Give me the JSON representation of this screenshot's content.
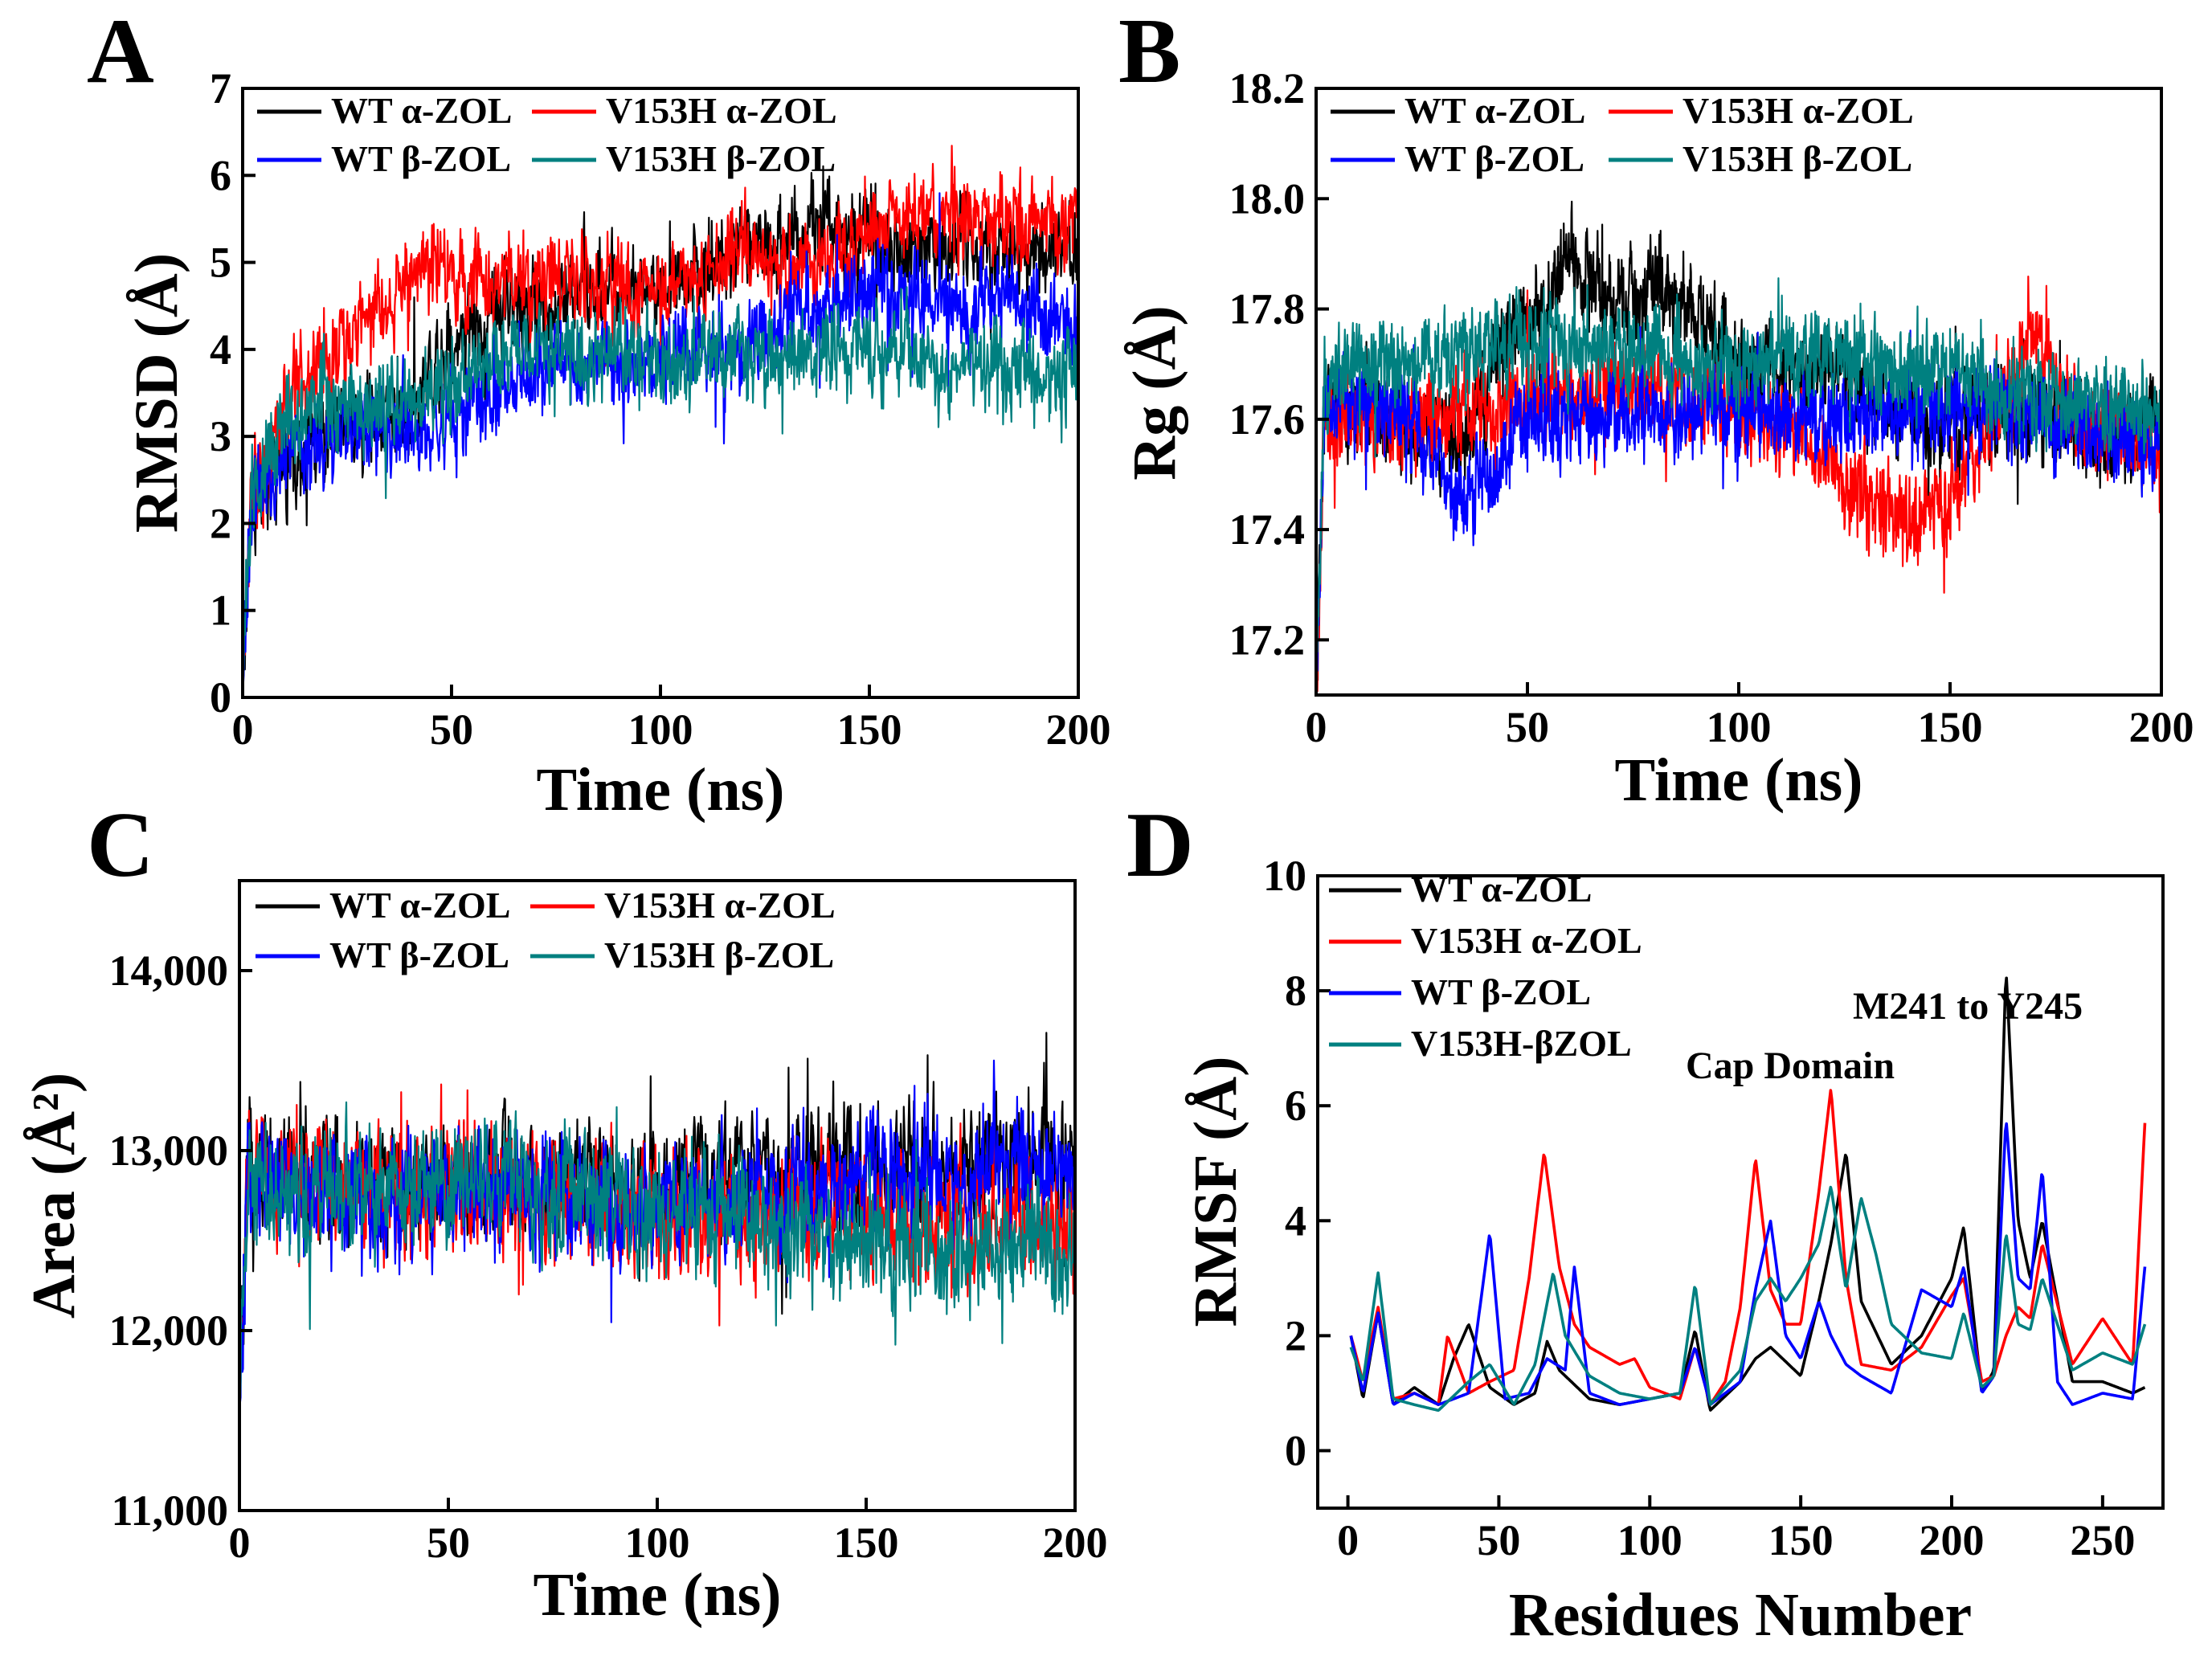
{
  "figure": {
    "panels": [
      "A",
      "B",
      "C",
      "D"
    ]
  },
  "colors": {
    "wt_alpha": "#000000",
    "v153h_alpha": "#ff0000",
    "wt_beta": "#0000ff",
    "v153h_beta": "#008080"
  },
  "chart_data": [
    {
      "panel": "A",
      "type": "line",
      "title": "",
      "xlabel": "Time (ns)",
      "ylabel": "RMSD (Å)",
      "xlim": [
        0,
        200
      ],
      "ylim": [
        0,
        7
      ],
      "xticks": [
        "0",
        "50",
        "100",
        "150",
        "200"
      ],
      "yticks": [
        "0",
        "1",
        "2",
        "3",
        "4",
        "5",
        "6",
        "7"
      ],
      "legend": {
        "placement": "top-left",
        "columns": 2
      },
      "noise": 0.09,
      "series": [
        {
          "name": "WT α-ZOL",
          "color": "#000000",
          "x": [
            0,
            2,
            10,
            20,
            30,
            40,
            50,
            55,
            60,
            70,
            80,
            90,
            100,
            110,
            120,
            130,
            140,
            150,
            160,
            170,
            180,
            190,
            200
          ],
          "values": [
            0,
            2.3,
            2.6,
            3.0,
            3.2,
            3.4,
            4.1,
            4.3,
            4.4,
            4.5,
            4.7,
            4.7,
            4.7,
            4.9,
            5.2,
            5.3,
            5.4,
            5.2,
            5.1,
            5.2,
            5.2,
            5.1,
            5.2
          ]
        },
        {
          "name": "V153H α-ZOL",
          "color": "#ff0000",
          "x": [
            0,
            2,
            10,
            20,
            30,
            40,
            45,
            50,
            60,
            70,
            80,
            90,
            100,
            110,
            120,
            130,
            140,
            150,
            160,
            170,
            180,
            190,
            200
          ],
          "values": [
            0,
            2.3,
            3.4,
            3.8,
            4.4,
            4.8,
            5.0,
            4.9,
            4.6,
            4.8,
            4.8,
            4.7,
            4.7,
            4.9,
            5.0,
            5.0,
            5.1,
            5.3,
            5.5,
            5.6,
            5.5,
            5.4,
            5.4
          ]
        },
        {
          "name": "WT β-ZOL",
          "color": "#0000ff",
          "x": [
            0,
            2,
            10,
            20,
            30,
            40,
            50,
            60,
            70,
            80,
            90,
            100,
            110,
            120,
            130,
            140,
            150,
            160,
            170,
            180,
            190,
            200
          ],
          "values": [
            0,
            2.2,
            2.8,
            2.9,
            3.1,
            3.0,
            3.2,
            3.5,
            3.7,
            3.8,
            3.8,
            3.9,
            4.0,
            4.0,
            4.3,
            4.5,
            4.7,
            4.6,
            4.5,
            4.6,
            4.4,
            4.3
          ]
        },
        {
          "name": "V153H β-ZOL",
          "color": "#008080",
          "x": [
            0,
            2,
            10,
            20,
            30,
            40,
            50,
            60,
            70,
            80,
            90,
            100,
            110,
            120,
            130,
            140,
            150,
            160,
            170,
            180,
            190,
            200
          ],
          "values": [
            0,
            2.4,
            3.2,
            3.4,
            3.3,
            3.4,
            3.6,
            3.9,
            4.0,
            4.0,
            3.9,
            3.9,
            3.8,
            3.9,
            3.9,
            4.0,
            4.0,
            3.9,
            3.8,
            3.8,
            3.7,
            3.7
          ]
        }
      ]
    },
    {
      "panel": "B",
      "type": "line",
      "title": "",
      "xlabel": "Time (ns)",
      "ylabel": "Rg (Å)",
      "xlim": [
        0,
        200
      ],
      "ylim": [
        17.1,
        18.2
      ],
      "xticks": [
        "0",
        "50",
        "100",
        "150",
        "200"
      ],
      "yticks": [
        "17.2",
        "17.4",
        "17.6",
        "17.8",
        "18.0",
        "18.2"
      ],
      "legend": {
        "placement": "top-left",
        "columns": 2
      },
      "noise": 0.09,
      "series": [
        {
          "name": "WT α-ZOL",
          "color": "#000000",
          "x": [
            0,
            2,
            20,
            35,
            45,
            55,
            60,
            70,
            80,
            90,
            100,
            120,
            140,
            150,
            170,
            190,
            200
          ],
          "values": [
            17.1,
            17.62,
            17.6,
            17.55,
            17.75,
            17.82,
            17.9,
            17.8,
            17.85,
            17.8,
            17.7,
            17.7,
            17.6,
            17.6,
            17.6,
            17.55,
            17.6
          ]
        },
        {
          "name": "V153H α-ZOL",
          "color": "#ff0000",
          "x": [
            0,
            2,
            20,
            40,
            60,
            80,
            100,
            120,
            130,
            140,
            150,
            160,
            170,
            180,
            200
          ],
          "values": [
            17.1,
            17.6,
            17.6,
            17.62,
            17.65,
            17.65,
            17.62,
            17.55,
            17.45,
            17.42,
            17.45,
            17.6,
            17.75,
            17.6,
            17.55
          ]
        },
        {
          "name": "WT β-ZOL",
          "color": "#0000ff",
          "x": [
            0,
            2,
            20,
            30,
            35,
            40,
            50,
            70,
            100,
            120,
            150,
            170,
            200
          ],
          "values": [
            17.1,
            17.65,
            17.62,
            17.5,
            17.45,
            17.5,
            17.6,
            17.6,
            17.62,
            17.6,
            17.63,
            17.6,
            17.55
          ]
        },
        {
          "name": "V153H β-ZOL",
          "color": "#008080",
          "x": [
            0,
            2,
            20,
            50,
            70,
            100,
            120,
            150,
            170,
            200
          ],
          "values": [
            17.1,
            17.68,
            17.7,
            17.75,
            17.72,
            17.7,
            17.72,
            17.68,
            17.65,
            17.6
          ]
        }
      ]
    },
    {
      "panel": "C",
      "type": "line",
      "title": "",
      "xlabel": "Time (ns)",
      "ylabel": "Area (Å²)",
      "xlim": [
        0,
        200
      ],
      "ylim": [
        11000,
        14500
      ],
      "xticks": [
        "0",
        "50",
        "100",
        "150",
        "200"
      ],
      "yticks": [
        "11,000",
        "12,000",
        "13,000",
        "14,000"
      ],
      "legend": {
        "placement": "top-left",
        "columns": 2
      },
      "noise": 0.12,
      "series": [
        {
          "name": "WT α-ZOL",
          "color": "#000000",
          "x": [
            0,
            2,
            20,
            50,
            100,
            150,
            200
          ],
          "values": [
            11500,
            12900,
            12850,
            12800,
            12850,
            12900,
            12950
          ]
        },
        {
          "name": "V153H α-ZOL",
          "color": "#ff0000",
          "x": [
            0,
            2,
            20,
            50,
            100,
            150,
            200
          ],
          "values": [
            11500,
            12850,
            12800,
            12750,
            12650,
            12650,
            12600
          ]
        },
        {
          "name": "WT β-ZOL",
          "color": "#0000ff",
          "x": [
            0,
            2,
            20,
            50,
            100,
            140,
            160,
            200
          ],
          "values": [
            11500,
            12800,
            12750,
            12750,
            12700,
            12800,
            12900,
            12900
          ]
        },
        {
          "name": "V153H β-ZOL",
          "color": "#008080",
          "x": [
            0,
            2,
            20,
            50,
            100,
            150,
            200
          ],
          "values": [
            11500,
            12800,
            12800,
            12850,
            12700,
            12450,
            12450
          ]
        }
      ]
    },
    {
      "panel": "D",
      "type": "line",
      "title": "",
      "xlabel": "Residues Number",
      "ylabel": "RMSF (Å)",
      "xlim": [
        -10,
        270
      ],
      "ylim": [
        -1,
        10
      ],
      "xticks": [
        "0",
        "50",
        "100",
        "150",
        "200",
        "250"
      ],
      "yticks": [
        "0",
        "2",
        "4",
        "6",
        "8",
        "10"
      ],
      "legend": {
        "placement": "top-left",
        "columns": 1
      },
      "annotations": [
        "M241 to Y245",
        "Cap Domain"
      ],
      "noise": 0,
      "series": [
        {
          "name": "WT α-ZOL",
          "color": "#000000",
          "x": [
            1,
            5,
            10,
            15,
            22,
            30,
            35,
            40,
            47,
            55,
            62,
            66,
            70,
            80,
            90,
            100,
            110,
            115,
            120,
            130,
            135,
            140,
            150,
            156,
            160,
            165,
            170,
            180,
            190,
            200,
            204,
            210,
            214,
            218,
            222,
            226,
            230,
            240,
            250,
            260,
            264
          ],
          "values": [
            2.0,
            0.9,
            2.4,
            0.8,
            1.1,
            0.8,
            1.6,
            2.2,
            1.1,
            0.8,
            1.0,
            1.9,
            1.4,
            0.9,
            0.8,
            0.9,
            1.0,
            2.1,
            0.7,
            1.2,
            1.6,
            1.8,
            1.3,
            2.6,
            3.6,
            5.2,
            2.6,
            1.5,
            2.0,
            3.0,
            3.9,
            1.0,
            1.4,
            8.4,
            4.0,
            3.0,
            4.0,
            1.2,
            1.2,
            1.0,
            1.1
          ]
        },
        {
          "name": "V153H α-ZOL",
          "color": "#ff0000",
          "x": [
            1,
            5,
            10,
            15,
            22,
            30,
            33,
            40,
            47,
            55,
            60,
            65,
            70,
            75,
            80,
            90,
            95,
            100,
            110,
            115,
            120,
            125,
            130,
            135,
            140,
            145,
            150,
            156,
            160,
            165,
            170,
            180,
            190,
            200,
            204,
            210,
            214,
            218,
            222,
            226,
            230,
            240,
            250,
            260,
            264
          ],
          "values": [
            2.0,
            1.2,
            2.5,
            0.9,
            1.0,
            0.8,
            2.0,
            1.0,
            1.2,
            1.4,
            3.0,
            5.2,
            3.2,
            2.2,
            1.8,
            1.5,
            1.6,
            1.1,
            0.9,
            1.8,
            0.8,
            1.2,
            2.5,
            5.1,
            2.8,
            2.2,
            2.2,
            4.5,
            6.3,
            3.0,
            1.5,
            1.4,
            1.8,
            2.7,
            3.0,
            1.2,
            1.3,
            2.0,
            2.5,
            2.3,
            3.6,
            1.5,
            2.3,
            1.5,
            5.7
          ]
        },
        {
          "name": "WT β-ZOL",
          "color": "#0000ff",
          "x": [
            1,
            5,
            10,
            15,
            22,
            30,
            40,
            47,
            52,
            60,
            66,
            72,
            75,
            80,
            90,
            100,
            110,
            115,
            120,
            130,
            135,
            140,
            145,
            150,
            156,
            160,
            165,
            170,
            180,
            190,
            200,
            204,
            210,
            214,
            218,
            222,
            226,
            230,
            235,
            240,
            250,
            260,
            264
          ],
          "values": [
            2.0,
            1.0,
            2.4,
            0.8,
            1.0,
            0.8,
            1.0,
            3.8,
            0.9,
            1.0,
            1.6,
            1.4,
            3.2,
            1.0,
            0.8,
            0.9,
            1.0,
            1.8,
            0.8,
            1.2,
            2.8,
            4.0,
            2.0,
            1.6,
            2.6,
            2.0,
            1.5,
            1.3,
            1.0,
            2.8,
            2.5,
            3.2,
            1.0,
            1.3,
            5.8,
            3.0,
            2.8,
            4.9,
            1.2,
            0.8,
            1.0,
            0.9,
            3.2
          ]
        },
        {
          "name": "V153H-βZOL",
          "color": "#008080",
          "x": [
            1,
            5,
            10,
            15,
            22,
            30,
            40,
            47,
            55,
            62,
            68,
            72,
            80,
            90,
            100,
            110,
            115,
            120,
            130,
            135,
            140,
            145,
            150,
            156,
            160,
            165,
            170,
            175,
            180,
            190,
            200,
            204,
            210,
            214,
            218,
            222,
            226,
            230,
            240,
            250,
            260,
            264
          ],
          "values": [
            1.8,
            1.2,
            3.1,
            0.9,
            0.8,
            0.7,
            1.2,
            1.5,
            0.8,
            1.5,
            3.1,
            2.0,
            1.3,
            1.0,
            0.9,
            1.0,
            2.9,
            0.8,
            1.4,
            2.6,
            3.0,
            2.6,
            3.0,
            3.6,
            4.6,
            2.8,
            4.4,
            3.4,
            2.2,
            1.7,
            1.6,
            2.4,
            1.1,
            1.3,
            3.8,
            2.2,
            2.1,
            3.0,
            1.4,
            1.7,
            1.5,
            2.2
          ]
        }
      ]
    }
  ]
}
